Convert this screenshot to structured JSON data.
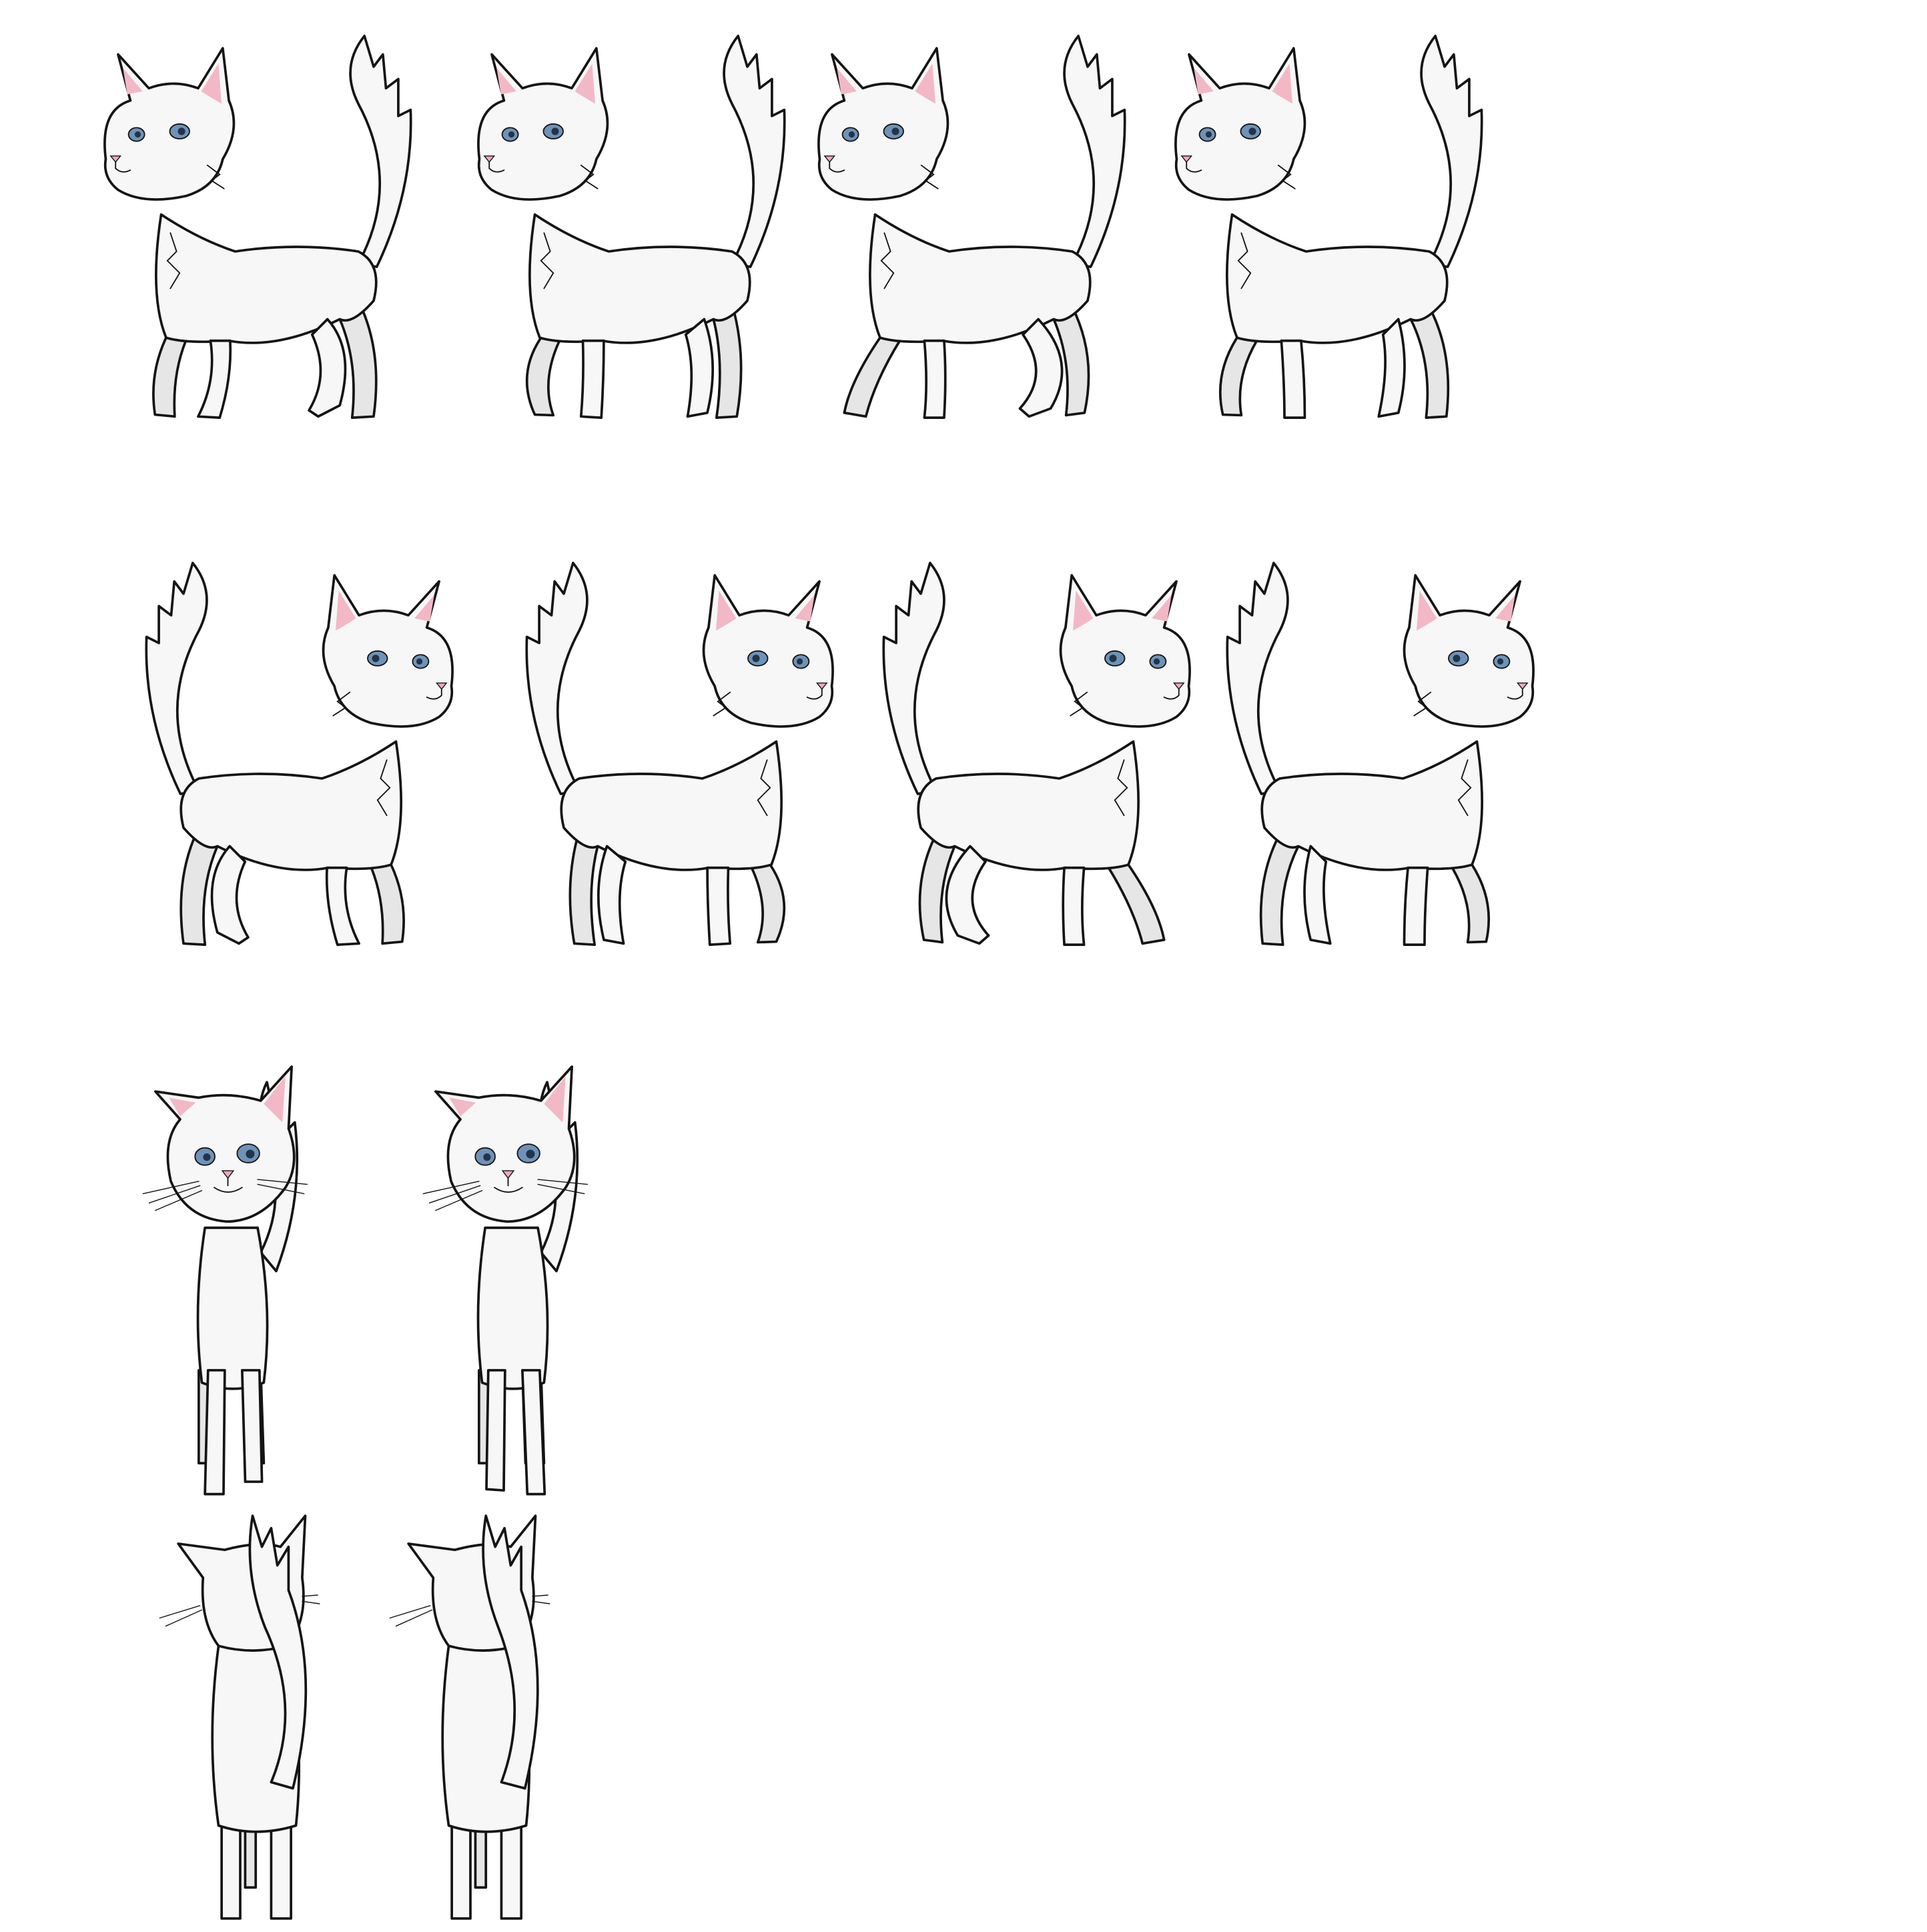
{
  "sheet": {
    "background": "#ffffff",
    "colors": {
      "outline": "#141414",
      "fur": "#f7f7f7",
      "fur_shadow": "#e6e6e6",
      "ear_inner": "#f2b8c6",
      "eye_iris": "#6f93b8",
      "eye_pupil": "#22344a",
      "nose": "#f0a8b8",
      "mouth": "#6a2b34"
    }
  },
  "rows": [
    {
      "row_name": "walk-left",
      "frames": [
        {
          "frame_name": "walk-left-frame-1",
          "view": "side",
          "facing": "left",
          "pose": 0
        },
        {
          "frame_name": "walk-left-frame-2",
          "view": "side",
          "facing": "left",
          "pose": 1
        },
        {
          "frame_name": "walk-left-frame-3",
          "view": "side",
          "facing": "left",
          "pose": 2
        },
        {
          "frame_name": "walk-left-frame-4",
          "view": "side",
          "facing": "left",
          "pose": 3
        }
      ]
    },
    {
      "row_name": "walk-right",
      "frames": [
        {
          "frame_name": "walk-right-frame-1",
          "view": "side",
          "facing": "right",
          "pose": 0
        },
        {
          "frame_name": "walk-right-frame-2",
          "view": "side",
          "facing": "right",
          "pose": 1
        },
        {
          "frame_name": "walk-right-frame-3",
          "view": "side",
          "facing": "right",
          "pose": 2
        },
        {
          "frame_name": "walk-right-frame-4",
          "view": "side",
          "facing": "right",
          "pose": 3
        }
      ]
    },
    {
      "row_name": "walk-down",
      "frames": [
        {
          "frame_name": "walk-down-frame-1",
          "view": "front",
          "facing": "down",
          "pose": 0
        },
        {
          "frame_name": "walk-down-frame-2",
          "view": "front",
          "facing": "down",
          "pose": 1
        }
      ]
    },
    {
      "row_name": "walk-up",
      "frames": [
        {
          "frame_name": "walk-up-frame-1",
          "view": "back",
          "facing": "up",
          "pose": 0
        },
        {
          "frame_name": "walk-up-frame-2",
          "view": "back",
          "facing": "up",
          "pose": 1
        }
      ]
    }
  ]
}
